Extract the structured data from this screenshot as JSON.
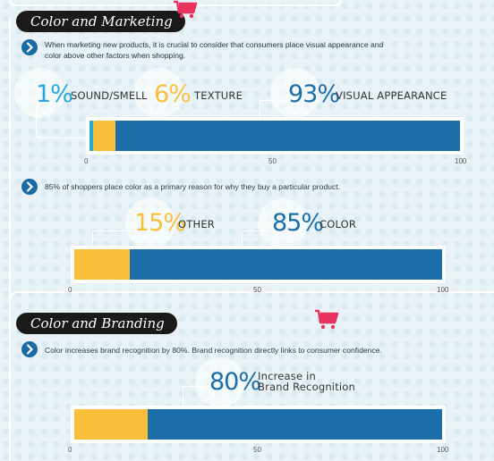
{
  "colors": {
    "blue": "#1b6ea8",
    "yellow": "#f9bf3b",
    "light_blue": "#2aa6df",
    "dark_text": "#333333",
    "banner": "#1a1a1a",
    "cart": "#e8335e"
  },
  "sections": {
    "marketing": {
      "title": "Color and Marketing",
      "item1": "When marketing new products, it is crucial to consider that consumers place visual appearance and color above other factors when shopping.",
      "item2": "85% of shoppers place color as a primary reason for why they buy a particular product."
    },
    "branding": {
      "title": "Color and Branding",
      "item1": "Color increases brand recognition by 80%. Brand recognition directly links to consumer confidence."
    }
  },
  "chart_data": [
    {
      "type": "bar",
      "orientation": "horizontal-stacked",
      "series": [
        {
          "name": "SOUND/SMELL",
          "value": 1,
          "label": "1%",
          "color": "#2aa6df"
        },
        {
          "name": "TEXTURE",
          "value": 6,
          "label": "6%",
          "color": "#f9bf3b"
        },
        {
          "name": "VISUAL APPEARANCE",
          "value": 93,
          "label": "93%",
          "color": "#1b6ea8"
        }
      ],
      "xlim": [
        0,
        100
      ],
      "ticks": [
        "0",
        "50",
        "100"
      ]
    },
    {
      "type": "bar",
      "orientation": "horizontal-stacked",
      "series": [
        {
          "name": "OTHER",
          "value": 15,
          "label": "15%",
          "color": "#f9bf3b"
        },
        {
          "name": "COLOR",
          "value": 85,
          "label": "85%",
          "color": "#1b6ea8"
        }
      ],
      "xlim": [
        0,
        100
      ],
      "ticks": [
        "0",
        "50",
        "100"
      ]
    },
    {
      "type": "bar",
      "orientation": "horizontal-stacked",
      "series": [
        {
          "value": 20,
          "color": "#f9bf3b"
        },
        {
          "name": "Increase in Brand Recognition",
          "name_lines": [
            "Increase in",
            "Brand Recognition"
          ],
          "value": 80,
          "label": "80%",
          "color": "#1b6ea8"
        }
      ],
      "xlim": [
        0,
        100
      ],
      "ticks": [
        "0",
        "50",
        "100"
      ]
    }
  ]
}
